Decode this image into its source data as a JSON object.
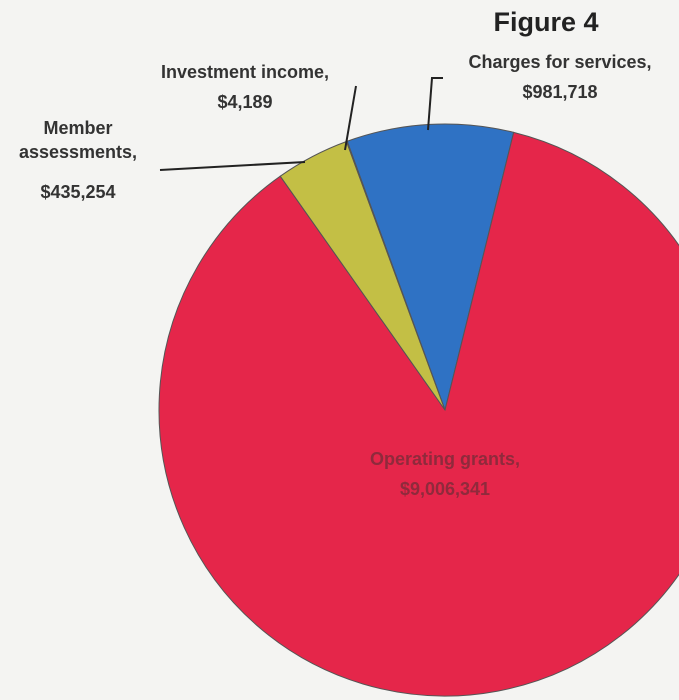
{
  "chart_data": {
    "type": "pie",
    "title": "Figure 4",
    "categories": [
      "Charges for services,",
      "Operating grants,",
      "Member assessments,",
      "Investment income,"
    ],
    "values": [
      981718,
      9006341,
      435254,
      4189
    ],
    "value_labels": [
      "$981,718",
      "$9,006,341",
      "$435,254",
      "$4,189"
    ],
    "colors": [
      "#2f72c4",
      "#e5264a",
      "#c3bf45",
      "#8a8a5a"
    ]
  }
}
